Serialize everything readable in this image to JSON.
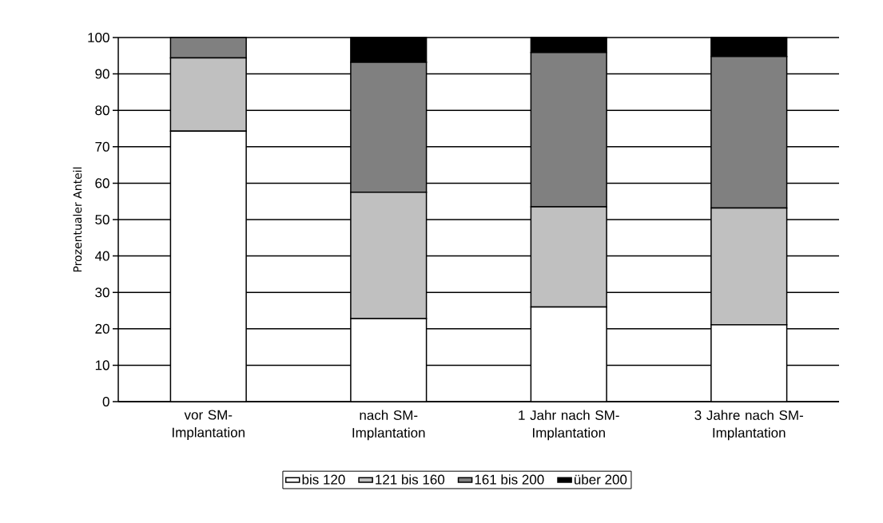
{
  "chart_data": {
    "type": "bar",
    "stacked": true,
    "ylabel": "Prozentualer Anteil",
    "categories": [
      "vor SM-Implantation",
      "nach SM-Implantation",
      "1 Jahr nach SM-Implantation",
      "3 Jahre nach SM-Implantation"
    ],
    "series": [
      {
        "name": "bis 120",
        "color": "#ffffff",
        "values": [
          74.3,
          22.8,
          26.0,
          21.1
        ]
      },
      {
        "name": "121 bis 160",
        "color": "#c0c0c0",
        "values": [
          20.1,
          34.7,
          27.5,
          32.1
        ]
      },
      {
        "name": "161 bis 200",
        "color": "#808080",
        "values": [
          5.6,
          35.7,
          42.4,
          41.6
        ]
      },
      {
        "name": "über 200",
        "color": "#000000",
        "values": [
          0,
          6.8,
          4.1,
          5.2
        ]
      }
    ],
    "ylim": [
      0,
      100
    ],
    "yticks": [
      0,
      10,
      20,
      30,
      40,
      50,
      60,
      70,
      80,
      90,
      100
    ],
    "grid": "y",
    "legend": "bottom"
  }
}
